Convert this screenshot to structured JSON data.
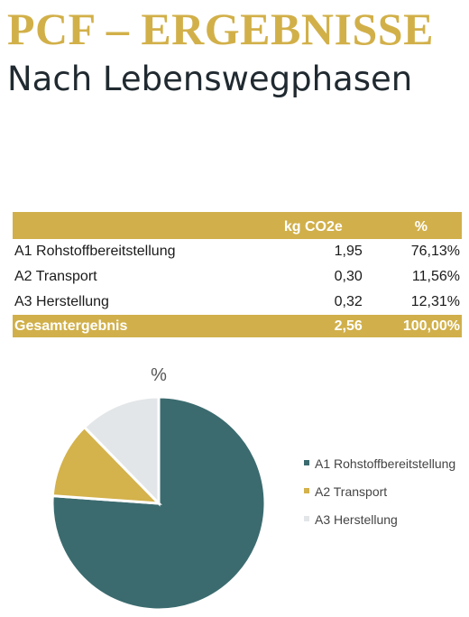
{
  "header": {
    "title": "PCF – ERGEBNISSE",
    "subtitle": "Nach Lebenswegphasen"
  },
  "table": {
    "columns": [
      "",
      "kg CO2e",
      "%"
    ],
    "rows": [
      {
        "name": "A1 Rohstoffbereitstellung",
        "kg": "1,95",
        "pct": "76,13%"
      },
      {
        "name": "A2 Transport",
        "kg": "0,30",
        "pct": "11,56%"
      },
      {
        "name": "A3 Herstellung",
        "kg": "0,32",
        "pct": "12,31%"
      }
    ],
    "total": {
      "name": "Gesamtergebnis",
      "kg": "2,56",
      "pct": "100,00%"
    }
  },
  "colors": {
    "accent": "#d1b04b",
    "title": "#d2b049",
    "a1": "#3b6b6f",
    "a2": "#d4b24c",
    "a3": "#e3e6e8"
  },
  "chart_data": {
    "type": "pie",
    "title": "%",
    "categories": [
      "A1 Rohstoffbereitstellung",
      "A2 Transport",
      "A3 Herstellung"
    ],
    "values": [
      76.13,
      11.56,
      12.31
    ],
    "legend": "right"
  }
}
